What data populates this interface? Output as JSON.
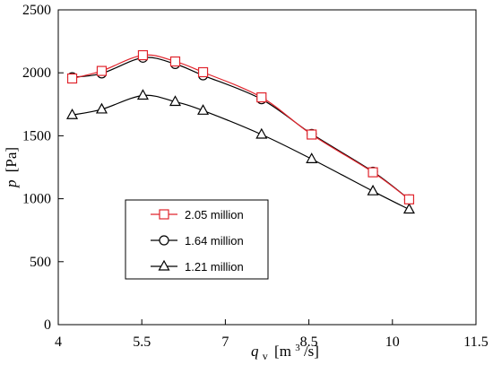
{
  "chart_data": {
    "type": "line",
    "xlim": [
      4,
      11.5
    ],
    "ylim": [
      0,
      2500
    ],
    "x_ticks": [
      4,
      5.5,
      7,
      8.5,
      10,
      11.5
    ],
    "y_ticks": [
      0,
      500,
      1000,
      1500,
      2000,
      2500
    ],
    "x_tick_labels": [
      "4",
      "5.5",
      "7",
      "8.5",
      "10",
      "11.5"
    ],
    "y_tick_labels": [
      "0",
      "500",
      "1000",
      "1500",
      "2000",
      "2500"
    ],
    "ylabel": {
      "main": "p",
      "unit": "[Pa]"
    },
    "xlabel": {
      "main": "q",
      "sub": "v",
      "unit_pre": "[m",
      "unit_sup": "3",
      "unit_post": "/s]"
    },
    "legend_position": "lower-left",
    "grid": false,
    "series": [
      {
        "name": "2.05 million",
        "marker": "square",
        "color": "#e0242c",
        "x": [
          4.25,
          4.78,
          5.52,
          6.1,
          6.6,
          7.65,
          8.55,
          9.65,
          10.3
        ],
        "y": [
          1955,
          2015,
          2140,
          2090,
          2005,
          1805,
          1510,
          1210,
          995
        ]
      },
      {
        "name": "1.64 million",
        "marker": "circle",
        "color": "#000000",
        "x": [
          4.25,
          4.78,
          5.52,
          6.1,
          6.6,
          7.65,
          8.55,
          9.65,
          10.3
        ],
        "y": [
          1965,
          1995,
          2120,
          2070,
          1980,
          1790,
          1515,
          1215,
          995
        ]
      },
      {
        "name": "1.21 million",
        "marker": "triangle",
        "color": "#000000",
        "x": [
          4.25,
          4.78,
          5.52,
          6.1,
          6.6,
          7.65,
          8.55,
          9.65,
          10.3
        ],
        "y": [
          1665,
          1710,
          1820,
          1770,
          1700,
          1510,
          1315,
          1060,
          915
        ]
      }
    ]
  }
}
